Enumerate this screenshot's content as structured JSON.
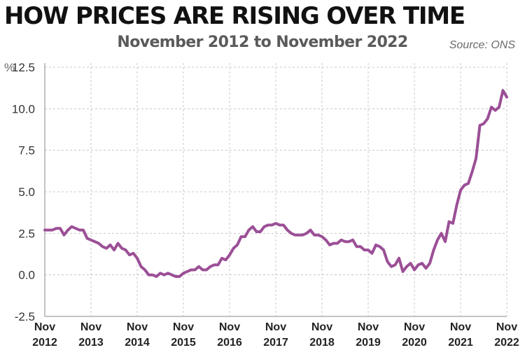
{
  "header": {
    "title": "HOW PRICES ARE RISING OVER TIME",
    "subtitle": "November 2012 to November 2022",
    "source": "Source: ONS"
  },
  "colors": {
    "line": "#9b4f96",
    "grid": "#c8c8c8",
    "axis": "#888888"
  },
  "chart_data": {
    "type": "line",
    "title": "HOW PRICES ARE RISING OVER TIME",
    "subtitle": "November 2012 to November 2022",
    "y_unit_label": "%",
    "ylim": [
      -2.5,
      12.5
    ],
    "yticks": [
      -2.5,
      0.0,
      2.5,
      5.0,
      7.5,
      10.0,
      12.5
    ],
    "ytick_labels": [
      "-2.5",
      "0.0",
      "2.5",
      "5.0",
      "7.5",
      "10.0",
      "12.5"
    ],
    "xticks": [
      "2012-11",
      "2013-11",
      "2014-11",
      "2015-11",
      "2016-11",
      "2017-11",
      "2018-11",
      "2019-11",
      "2020-11",
      "2021-11",
      "2022-11"
    ],
    "xtick_labels": [
      [
        "Nov",
        "2012"
      ],
      [
        "Nov",
        "2013"
      ],
      [
        "Nov",
        "2014"
      ],
      [
        "Nov",
        "2015"
      ],
      [
        "Nov",
        "2016"
      ],
      [
        "Nov",
        "2017"
      ],
      [
        "Nov",
        "2018"
      ],
      [
        "Nov",
        "2019"
      ],
      [
        "Nov",
        "2020"
      ],
      [
        "Nov",
        "2021"
      ],
      [
        "Nov",
        "2022"
      ]
    ],
    "grid": true,
    "series": [
      {
        "x": [
          "2012-11",
          "2012-12",
          "2013-01",
          "2013-02",
          "2013-03",
          "2013-04",
          "2013-05",
          "2013-06",
          "2013-07",
          "2013-08",
          "2013-09",
          "2013-10",
          "2013-11",
          "2013-12",
          "2014-01",
          "2014-02",
          "2014-03",
          "2014-04",
          "2014-05",
          "2014-06",
          "2014-07",
          "2014-08",
          "2014-09",
          "2014-10",
          "2014-11",
          "2014-12",
          "2015-01",
          "2015-02",
          "2015-03",
          "2015-04",
          "2015-05",
          "2015-06",
          "2015-07",
          "2015-08",
          "2015-09",
          "2015-10",
          "2015-11",
          "2015-12",
          "2016-01",
          "2016-02",
          "2016-03",
          "2016-04",
          "2016-05",
          "2016-06",
          "2016-07",
          "2016-08",
          "2016-09",
          "2016-10",
          "2016-11",
          "2016-12",
          "2017-01",
          "2017-02",
          "2017-03",
          "2017-04",
          "2017-05",
          "2017-06",
          "2017-07",
          "2017-08",
          "2017-09",
          "2017-10",
          "2017-11",
          "2017-12",
          "2018-01",
          "2018-02",
          "2018-03",
          "2018-04",
          "2018-05",
          "2018-06",
          "2018-07",
          "2018-08",
          "2018-09",
          "2018-10",
          "2018-11",
          "2018-12",
          "2019-01",
          "2019-02",
          "2019-03",
          "2019-04",
          "2019-05",
          "2019-06",
          "2019-07",
          "2019-08",
          "2019-09",
          "2019-10",
          "2019-11",
          "2019-12",
          "2020-01",
          "2020-02",
          "2020-03",
          "2020-04",
          "2020-05",
          "2020-06",
          "2020-07",
          "2020-08",
          "2020-09",
          "2020-10",
          "2020-11",
          "2020-12",
          "2021-01",
          "2021-02",
          "2021-03",
          "2021-04",
          "2021-05",
          "2021-06",
          "2021-07",
          "2021-08",
          "2021-09",
          "2021-10",
          "2021-11",
          "2021-12",
          "2022-01",
          "2022-02",
          "2022-03",
          "2022-04",
          "2022-05",
          "2022-06",
          "2022-07",
          "2022-08",
          "2022-09",
          "2022-10",
          "2022-11"
        ],
        "values": [
          2.7,
          2.7,
          2.7,
          2.8,
          2.8,
          2.4,
          2.7,
          2.9,
          2.8,
          2.7,
          2.7,
          2.2,
          2.1,
          2.0,
          1.9,
          1.7,
          1.6,
          1.8,
          1.5,
          1.9,
          1.6,
          1.5,
          1.2,
          1.3,
          1.0,
          0.5,
          0.3,
          0.0,
          0.0,
          -0.1,
          0.1,
          0.0,
          0.1,
          0.0,
          -0.1,
          -0.1,
          0.1,
          0.2,
          0.3,
          0.3,
          0.5,
          0.3,
          0.3,
          0.5,
          0.6,
          0.6,
          1.0,
          0.9,
          1.2,
          1.6,
          1.8,
          2.3,
          2.3,
          2.7,
          2.9,
          2.6,
          2.6,
          2.9,
          3.0,
          3.0,
          3.1,
          3.0,
          3.0,
          2.7,
          2.5,
          2.4,
          2.4,
          2.4,
          2.5,
          2.7,
          2.4,
          2.4,
          2.3,
          2.1,
          1.8,
          1.9,
          1.9,
          2.1,
          2.0,
          2.0,
          2.1,
          1.7,
          1.7,
          1.5,
          1.5,
          1.3,
          1.8,
          1.7,
          1.5,
          0.8,
          0.5,
          0.6,
          1.0,
          0.2,
          0.5,
          0.7,
          0.3,
          0.6,
          0.7,
          0.4,
          0.7,
          1.5,
          2.1,
          2.5,
          2.0,
          3.2,
          3.1,
          4.2,
          5.1,
          5.4,
          5.5,
          6.2,
          7.0,
          9.0,
          9.1,
          9.4,
          10.1,
          9.9,
          10.1,
          11.1,
          10.7
        ]
      }
    ]
  }
}
